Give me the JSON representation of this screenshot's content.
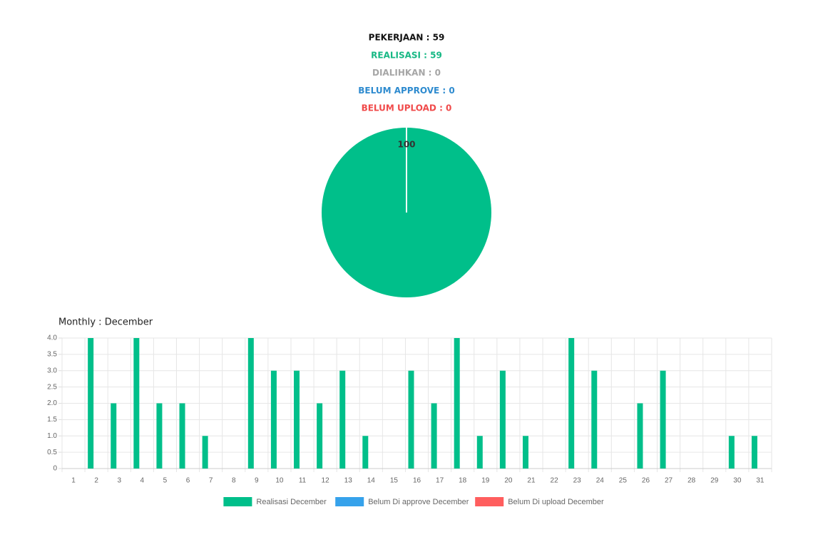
{
  "summary": [
    "PEKERJAAN : 59",
    "REALISASI : 59",
    "DIALIHKAN : 0",
    "BELUM APPROVE : 0",
    "BELUM UPLOAD : 0"
  ],
  "summary_colors": [
    "#111111",
    "#16b884",
    "#a6a6a6",
    "#2e8bcf",
    "#f04a4a"
  ],
  "chart_data": [
    {
      "type": "pie",
      "values": [
        100
      ],
      "colors": [
        "#00bf8a"
      ]
    },
    {
      "type": "bar",
      "title": "Monthly : December",
      "categories": [
        "1",
        "2",
        "3",
        "4",
        "5",
        "6",
        "7",
        "8",
        "9",
        "10",
        "11",
        "12",
        "13",
        "14",
        "15",
        "16",
        "17",
        "18",
        "19",
        "20",
        "21",
        "22",
        "23",
        "24",
        "25",
        "26",
        "27",
        "28",
        "29",
        "30",
        "31"
      ],
      "series": [
        {
          "name": "Realisasi December",
          "color": "#00bf8a",
          "values": [
            0,
            4,
            2,
            4,
            2,
            2,
            1,
            0,
            4,
            3,
            3,
            2,
            3,
            1,
            0,
            3,
            2,
            4,
            1,
            3,
            1,
            0,
            4,
            3,
            0,
            2,
            3,
            0,
            0,
            1,
            1
          ]
        },
        {
          "name": "Belum Di approve December",
          "color": "#36a2eb",
          "values": [
            0,
            0,
            0,
            0,
            0,
            0,
            0,
            0,
            0,
            0,
            0,
            0,
            0,
            0,
            0,
            0,
            0,
            0,
            0,
            0,
            0,
            0,
            0,
            0,
            0,
            0,
            0,
            0,
            0,
            0,
            0
          ]
        },
        {
          "name": "Belum Di upload December",
          "color": "#ff5e5e",
          "values": [
            0,
            0,
            0,
            0,
            0,
            0,
            0,
            0,
            0,
            0,
            0,
            0,
            0,
            0,
            0,
            0,
            0,
            0,
            0,
            0,
            0,
            0,
            0,
            0,
            0,
            0,
            0,
            0,
            0,
            0,
            0
          ]
        }
      ],
      "ylim": [
        0,
        4
      ],
      "yticks": [
        0,
        0.5,
        {
          "value": 1,
          "label": "1.0"
        },
        1.5,
        {
          "value": 2,
          "label": "2.0"
        },
        2.5,
        {
          "value": 3,
          "label": "3.0"
        },
        3.5,
        {
          "value": 4,
          "label": "4.0"
        }
      ],
      "grid": true
    }
  ]
}
